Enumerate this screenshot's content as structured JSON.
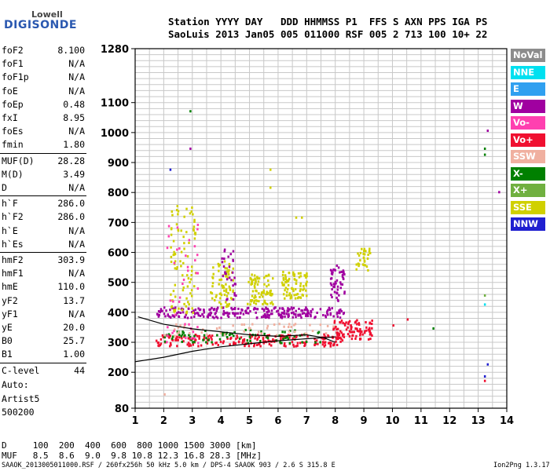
{
  "logo": {
    "top": "Lowell",
    "bottom": "DIGISONDE"
  },
  "header": {
    "line1": "Station YYYY DAY   DDD HHMMSS P1  FFS S AXN PPS IGA PS",
    "line2": "SaoLuis 2013 Jan05 005 011000 RSF 005 2 713 100 10+ 22"
  },
  "params": [
    {
      "k": "foF2",
      "v": "8.100"
    },
    {
      "k": "foF1",
      "v": "N/A"
    },
    {
      "k": "foF1p",
      "v": "N/A"
    },
    {
      "k": "foE",
      "v": "N/A"
    },
    {
      "k": "foEp",
      "v": "0.48"
    },
    {
      "k": "fxI",
      "v": "8.95"
    },
    {
      "k": "foEs",
      "v": "N/A"
    },
    {
      "k": "fmin",
      "v": "1.80"
    },
    {
      "k": "MUF(D)",
      "v": "28.28"
    },
    {
      "k": "M(D)",
      "v": "3.49"
    },
    {
      "k": "D",
      "v": "N/A"
    },
    {
      "k": "h`F",
      "v": "286.0"
    },
    {
      "k": "h`F2",
      "v": "286.0"
    },
    {
      "k": "h`E",
      "v": "N/A"
    },
    {
      "k": "h`Es",
      "v": "N/A"
    },
    {
      "k": "hmF2",
      "v": "303.9"
    },
    {
      "k": "hmF1",
      "v": "N/A"
    },
    {
      "k": "hmE",
      "v": "110.0"
    },
    {
      "k": "yF2",
      "v": "13.7"
    },
    {
      "k": "yF1",
      "v": "N/A"
    },
    {
      "k": "yE",
      "v": "20.0"
    },
    {
      "k": "B0",
      "v": "25.7"
    },
    {
      "k": "B1",
      "v": "1.00"
    },
    {
      "k": "C-level",
      "v": "44"
    }
  ],
  "notes": [
    "Auto:",
    "Artist5",
    "500200"
  ],
  "footer": {
    "d_row": "D     100  200  400  600  800 1000 1500 3000 [km]",
    "muf_row": "MUF   8.5  8.6  9.0  9.8 10.8 12.3 16.8 28.3 [MHz]",
    "file_line": "SAAOK_2013005011000.RSF / 260fx256h 50 kHz 5.0 km / DPS-4 SAAOK 903 / 2.6 S 315.8 E",
    "version": "Ion2Png 1.3.17"
  },
  "legend": [
    {
      "label": "NoVal",
      "color": "#8c8c8c"
    },
    {
      "label": "NNE",
      "color": "#00e0f0"
    },
    {
      "label": "E",
      "color": "#30a0f0"
    },
    {
      "label": "W",
      "color": "#a000a0"
    },
    {
      "label": "Vo-",
      "color": "#ff40b0"
    },
    {
      "label": "Vo+",
      "color": "#f01030"
    },
    {
      "label": "SSW",
      "color": "#f0b0a0"
    },
    {
      "label": "X-",
      "color": "#008000"
    },
    {
      "label": "X+",
      "color": "#70b040"
    },
    {
      "label": "SSE",
      "color": "#d0d000"
    },
    {
      "label": "NNW",
      "color": "#2020d0"
    }
  ],
  "chart_data": {
    "type": "scatter",
    "title": "",
    "xlabel": "",
    "ylabel": "",
    "xlim": [
      1,
      14
    ],
    "ylim": [
      80,
      1280
    ],
    "x_ticks": [
      1,
      2,
      3,
      4,
      5,
      6,
      7,
      8,
      9,
      10,
      11,
      12,
      13,
      14
    ],
    "y_ticks": [
      80,
      200,
      300,
      400,
      500,
      600,
      700,
      800,
      900,
      1000,
      1100,
      1280
    ],
    "grid": true,
    "clusters": [
      {
        "name": "W",
        "x": [
          1.7,
          8.3
        ],
        "y": [
          385,
          420
        ],
        "n": 260
      },
      {
        "name": "Vo+",
        "x": [
          1.7,
          8.3
        ],
        "y": [
          290,
          330
        ],
        "n": 220
      },
      {
        "name": "Vo+",
        "x": [
          7.9,
          9.3
        ],
        "y": [
          310,
          380
        ],
        "n": 90
      },
      {
        "name": "SSE",
        "x": [
          2.2,
          3.1
        ],
        "y": [
          400,
          760
        ],
        "n": 90
      },
      {
        "name": "SSE",
        "x": [
          3.6,
          4.4
        ],
        "y": [
          420,
          580
        ],
        "n": 70
      },
      {
        "name": "SSE",
        "x": [
          4.9,
          5.8
        ],
        "y": [
          430,
          530
        ],
        "n": 80
      },
      {
        "name": "SSE",
        "x": [
          6.1,
          7.0
        ],
        "y": [
          450,
          540
        ],
        "n": 80
      },
      {
        "name": "SSE",
        "x": [
          8.7,
          9.2
        ],
        "y": [
          540,
          620
        ],
        "n": 30
      },
      {
        "name": "W",
        "x": [
          7.8,
          8.3
        ],
        "y": [
          440,
          560
        ],
        "n": 50
      },
      {
        "name": "X-",
        "x": [
          2.0,
          7.5
        ],
        "y": [
          300,
          345
        ],
        "n": 80
      },
      {
        "name": "SSW",
        "x": [
          2.0,
          8.0
        ],
        "y": [
          325,
          365
        ],
        "n": 50
      },
      {
        "name": "W",
        "x": [
          4.0,
          4.5
        ],
        "y": [
          440,
          620
        ],
        "n": 30
      },
      {
        "name": "Vo-",
        "x": [
          2.0,
          3.2
        ],
        "y": [
          300,
          700
        ],
        "n": 40
      }
    ],
    "sparse_points": [
      {
        "name": "SSE",
        "x": 5.7,
        "y": 880
      },
      {
        "name": "SSE",
        "x": 5.7,
        "y": 820
      },
      {
        "name": "SSE",
        "x": 6.6,
        "y": 720
      },
      {
        "name": "SSE",
        "x": 6.8,
        "y": 720
      },
      {
        "name": "X-",
        "x": 13.2,
        "y": 930
      },
      {
        "name": "X-",
        "x": 13.2,
        "y": 950
      },
      {
        "name": "W",
        "x": 13.7,
        "y": 805
      },
      {
        "name": "W",
        "x": 13.3,
        "y": 1010
      },
      {
        "name": "X-",
        "x": 11.4,
        "y": 350
      },
      {
        "name": "Vo+",
        "x": 10.0,
        "y": 360
      },
      {
        "name": "Vo+",
        "x": 10.5,
        "y": 380
      },
      {
        "name": "NNW",
        "x": 13.3,
        "y": 230
      },
      {
        "name": "NNW",
        "x": 13.2,
        "y": 190
      },
      {
        "name": "Vo+",
        "x": 13.2,
        "y": 175
      },
      {
        "name": "NNE",
        "x": 13.2,
        "y": 430
      },
      {
        "name": "X+",
        "x": 13.2,
        "y": 460
      },
      {
        "name": "X-",
        "x": 2.9,
        "y": 1075
      },
      {
        "name": "SSW",
        "x": 2.0,
        "y": 130
      },
      {
        "name": "W",
        "x": 2.9,
        "y": 950
      },
      {
        "name": "NNW",
        "x": 2.2,
        "y": 880
      }
    ],
    "profile_lower": [
      [
        1,
        235
      ],
      [
        2,
        250
      ],
      [
        3,
        270
      ],
      [
        4,
        285
      ],
      [
        5,
        295
      ],
      [
        6,
        305
      ],
      [
        7,
        312
      ],
      [
        8,
        318
      ]
    ],
    "profile_upper": [
      [
        1.1,
        385
      ],
      [
        2,
        360
      ],
      [
        3,
        345
      ],
      [
        4,
        335
      ],
      [
        5,
        325
      ],
      [
        6,
        320
      ],
      [
        7,
        325
      ],
      [
        7.6,
        315
      ],
      [
        8,
        300
      ]
    ]
  }
}
